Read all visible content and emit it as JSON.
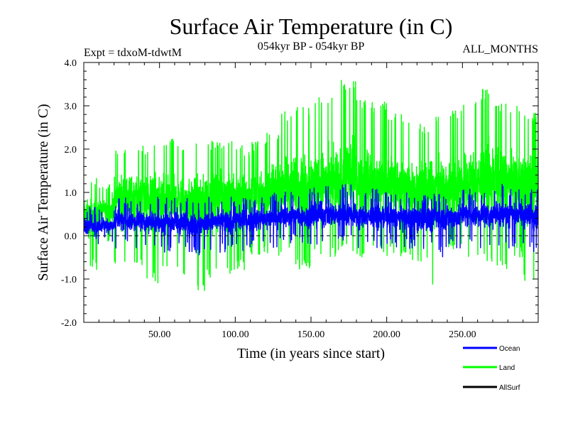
{
  "chart_data": {
    "type": "line",
    "title": "Surface Air Temperature (in C)",
    "subtitle_left": "Expt = tdxoM-tdwtM",
    "subtitle_center": "054kyr BP - 054kyr BP",
    "subtitle_right": "ALL_MONTHS",
    "xlabel": "Time (in years since start)",
    "ylabel": "Surface Air Temperature (in C)",
    "xlim": [
      0,
      300
    ],
    "ylim": [
      -2.0,
      4.0
    ],
    "x_ticks": [
      50,
      100,
      150,
      200,
      250
    ],
    "x_tick_labels": [
      "50.00",
      "100.00",
      "150.00",
      "200.00",
      "250.00"
    ],
    "y_ticks": [
      -2.0,
      -1.0,
      0.0,
      1.0,
      2.0,
      3.0,
      4.0
    ],
    "y_tick_labels": [
      "-2.0",
      "-1.0",
      "0.0",
      "1.0",
      "2.0",
      "3.0",
      "4.0"
    ],
    "reference_line": 0.0,
    "series": [
      {
        "name": "Land",
        "color": "#00ff00",
        "note": "monthly values; per-decade approx. min/mean/max shown",
        "x": [
          5,
          15,
          25,
          35,
          45,
          55,
          65,
          75,
          85,
          95,
          105,
          115,
          125,
          135,
          145,
          155,
          165,
          175,
          185,
          195,
          205,
          215,
          225,
          235,
          245,
          255,
          265,
          275,
          285,
          295
        ],
        "mean": [
          0.45,
          0.6,
          0.9,
          0.95,
          0.9,
          0.85,
          0.8,
          0.75,
          0.9,
          0.95,
          0.95,
          1.0,
          1.05,
          1.1,
          1.15,
          1.2,
          1.15,
          1.3,
          1.2,
          1.15,
          1.15,
          1.1,
          1.05,
          1.1,
          1.15,
          1.2,
          1.25,
          1.3,
          1.25,
          1.2
        ],
        "min": [
          -0.8,
          -0.2,
          -0.8,
          -0.8,
          -1.1,
          -0.8,
          -0.9,
          -1.3,
          -1.0,
          -0.9,
          -0.8,
          -0.5,
          -0.6,
          -0.5,
          -0.8,
          -0.5,
          -0.5,
          -0.4,
          -0.6,
          -0.4,
          -0.5,
          -0.6,
          -0.6,
          -1.3,
          -0.4,
          -0.5,
          -0.6,
          -0.8,
          -0.5,
          -1.1
        ],
        "max": [
          1.4,
          1.2,
          2.1,
          2.1,
          2.1,
          2.3,
          2.2,
          2.2,
          2.2,
          2.2,
          2.1,
          2.2,
          2.4,
          2.9,
          3.0,
          3.2,
          3.3,
          3.6,
          3.2,
          3.1,
          2.9,
          2.8,
          2.6,
          2.8,
          2.9,
          3.2,
          3.4,
          3.1,
          3.0,
          2.9
        ]
      },
      {
        "name": "Ocean",
        "color": "#0000ff",
        "note": "monthly values; per-decade approx. min/mean/max shown",
        "x": [
          5,
          15,
          25,
          35,
          45,
          55,
          65,
          75,
          85,
          95,
          105,
          115,
          125,
          135,
          145,
          155,
          165,
          175,
          185,
          195,
          205,
          215,
          225,
          235,
          245,
          255,
          265,
          275,
          285,
          295
        ],
        "mean": [
          0.2,
          0.25,
          0.35,
          0.35,
          0.35,
          0.3,
          0.3,
          0.3,
          0.35,
          0.35,
          0.35,
          0.4,
          0.4,
          0.45,
          0.45,
          0.5,
          0.5,
          0.5,
          0.45,
          0.45,
          0.45,
          0.45,
          0.4,
          0.45,
          0.45,
          0.5,
          0.5,
          0.55,
          0.5,
          0.5
        ],
        "min": [
          -0.2,
          -0.15,
          -0.3,
          -0.3,
          -0.3,
          -0.4,
          -0.4,
          -0.5,
          -0.4,
          -0.4,
          -0.4,
          -0.3,
          -0.3,
          -0.2,
          -0.2,
          -0.3,
          -0.2,
          -0.2,
          -0.3,
          -0.3,
          -0.3,
          -0.3,
          -0.4,
          -0.5,
          -0.3,
          -0.3,
          -0.3,
          -0.3,
          -0.3,
          -0.4
        ],
        "max": [
          0.7,
          0.7,
          0.9,
          0.9,
          0.9,
          0.9,
          0.9,
          0.8,
          0.9,
          0.9,
          0.9,
          0.9,
          1.0,
          1.1,
          1.1,
          1.2,
          1.2,
          1.2,
          1.1,
          1.1,
          1.0,
          1.0,
          1.0,
          1.0,
          1.1,
          1.1,
          1.1,
          1.2,
          1.1,
          1.1
        ]
      },
      {
        "name": "AllSurf",
        "color": "#000000",
        "x": [],
        "mean": [],
        "min": [],
        "max": []
      }
    ],
    "legend": [
      "Ocean",
      "Land",
      "AllSurf"
    ],
    "legend_position": "bottom-right"
  }
}
